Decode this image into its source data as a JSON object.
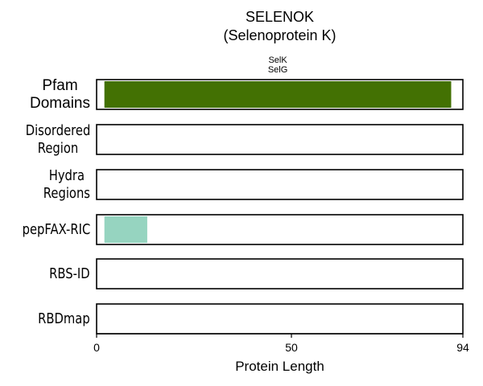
{
  "chart_data": {
    "type": "bar",
    "title": "SELENOK",
    "subtitle": "(Selenoprotein K)",
    "xlabel": "Protein Length",
    "xlim": [
      0,
      94
    ],
    "xticks": [
      0,
      50,
      94
    ],
    "grid": false,
    "tracks": [
      {
        "name": "Pfam\nDomains",
        "segments": [
          {
            "start": 2,
            "end": 91,
            "label": "SelK\nSelG",
            "color": "#437103"
          }
        ]
      },
      {
        "name": "Disordered\nRegion",
        "segments": []
      },
      {
        "name": "Hydra\nRegions",
        "segments": []
      },
      {
        "name": "pepFAX-RIC",
        "segments": [
          {
            "start": 2,
            "end": 13,
            "label": "",
            "color": "#96d4c0"
          }
        ]
      },
      {
        "name": "RBS-ID",
        "segments": []
      },
      {
        "name": "RBDmap",
        "segments": []
      }
    ]
  }
}
